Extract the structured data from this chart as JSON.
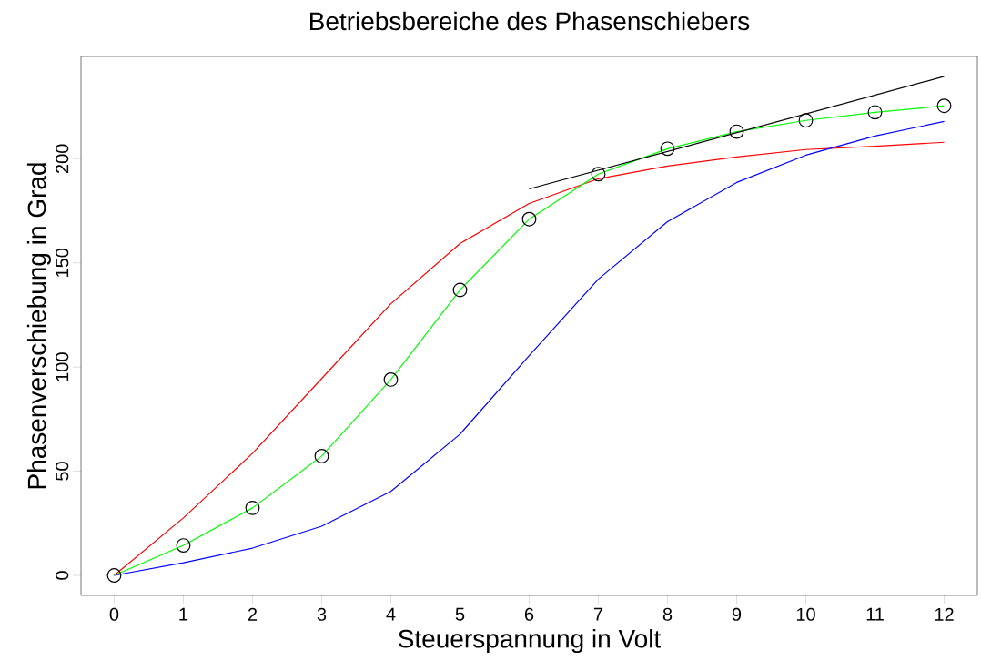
{
  "chart_data": {
    "type": "line",
    "title": "Betriebsbereiche des Phasenschiebers",
    "xlabel": "Steuerspannung in Volt",
    "ylabel": "Phasenverschiebung in Grad",
    "x": [
      0,
      1,
      2,
      3,
      4,
      5,
      6,
      7,
      8,
      9,
      10,
      11,
      12
    ],
    "series": [
      {
        "color": "#ff0000",
        "values": [
          0,
          27.6,
          58.6,
          94.5,
          130.4,
          159.3,
          178.5,
          190.4,
          196.5,
          200.9,
          204.4,
          206,
          207.9
        ]
      },
      {
        "color": "#0000ff",
        "values": [
          0,
          6.1,
          13.1,
          23.6,
          40.3,
          67.8,
          105.5,
          142.2,
          169.8,
          188.6,
          201.7,
          210.9,
          217.9
        ]
      },
      {
        "color": "#00ff00",
        "marker": "circle",
        "values": [
          0,
          14.4,
          32.4,
          57.3,
          94,
          137,
          171,
          192.6,
          204.8,
          213,
          218.4,
          222.3,
          225.4
        ]
      },
      {
        "color": "#000000",
        "x": [
          6,
          12
        ],
        "values": [
          185.5,
          239.5
        ]
      }
    ],
    "xlim": [
      -0.48,
      12.48
    ],
    "ylim": [
      -9.6,
      249.1
    ],
    "xticks": [
      0,
      1,
      2,
      3,
      4,
      5,
      6,
      7,
      8,
      9,
      10,
      11,
      12
    ],
    "yticks": [
      0,
      50,
      100,
      150,
      200
    ],
    "marker": "none",
    "line_style": "solid"
  }
}
